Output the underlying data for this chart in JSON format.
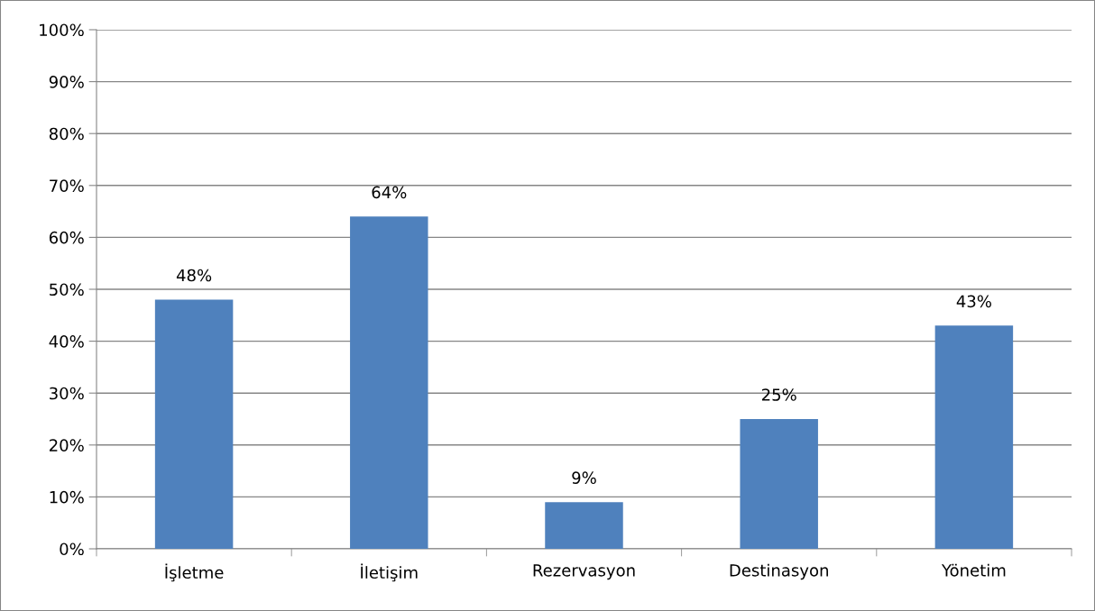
{
  "chart_data": {
    "type": "bar",
    "categories": [
      "İşletme",
      "İletişim",
      "Rezervasyon",
      "Destinasyon",
      "Yönetim"
    ],
    "values": [
      48,
      64,
      9,
      25,
      43
    ],
    "value_labels": [
      "48%",
      "64%",
      "9%",
      "25%",
      "43%"
    ],
    "color": "#4f81bd",
    "ylim": [
      0,
      100
    ],
    "yticks": [
      {
        "value": 0,
        "label": "0%"
      },
      {
        "value": 10,
        "label": "10%"
      },
      {
        "value": 20,
        "label": "20%"
      },
      {
        "value": 30,
        "label": "30%"
      },
      {
        "value": 40,
        "label": "40%"
      },
      {
        "value": 50,
        "label": "50%"
      },
      {
        "value": 60,
        "label": "60%"
      },
      {
        "value": 70,
        "label": "70%"
      },
      {
        "value": 80,
        "label": "80%"
      },
      {
        "value": 90,
        "label": "90%"
      },
      {
        "value": 100,
        "label": "100%"
      }
    ],
    "grid": "y",
    "legend": false
  }
}
